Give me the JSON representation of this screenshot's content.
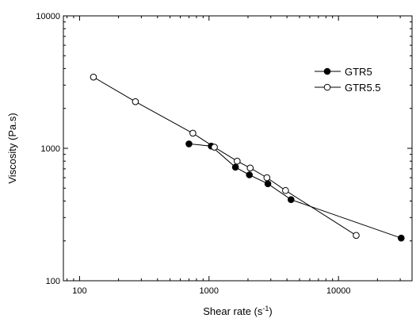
{
  "chart_data": {
    "type": "scatter",
    "title": "",
    "xlabel": "Shear rate (s",
    "xlabel_sup": "-1",
    "xlabel_end": ")",
    "ylabel": "Viscosity (Pa.s)",
    "xscale": "log",
    "yscale": "log",
    "xlim": [
      75,
      37000
    ],
    "ylim": [
      100,
      10000
    ],
    "x_ticks": [
      100,
      1000,
      10000
    ],
    "x_tick_labels": [
      "100",
      "1000",
      "10000"
    ],
    "y_ticks": [
      100,
      1000,
      10000
    ],
    "y_tick_labels": [
      "100",
      "1000",
      "10000"
    ],
    "grid": false,
    "legend_position": "top-right",
    "series": [
      {
        "name": "GTR5",
        "marker": "filled-circle",
        "color": "#000000",
        "points": [
          {
            "x": 700,
            "y": 1080
          },
          {
            "x": 1040,
            "y": 1040
          },
          {
            "x": 1600,
            "y": 720
          },
          {
            "x": 2050,
            "y": 630
          },
          {
            "x": 2850,
            "y": 540
          },
          {
            "x": 4300,
            "y": 410
          },
          {
            "x": 30500,
            "y": 210
          }
        ]
      },
      {
        "name": "GTR5.5",
        "marker": "open-circle",
        "color": "#000000",
        "points": [
          {
            "x": 128,
            "y": 3450
          },
          {
            "x": 270,
            "y": 2250
          },
          {
            "x": 750,
            "y": 1300
          },
          {
            "x": 1100,
            "y": 1020
          },
          {
            "x": 1650,
            "y": 800
          },
          {
            "x": 2080,
            "y": 710
          },
          {
            "x": 2800,
            "y": 600
          },
          {
            "x": 3900,
            "y": 480
          },
          {
            "x": 13700,
            "y": 220
          }
        ]
      }
    ]
  }
}
